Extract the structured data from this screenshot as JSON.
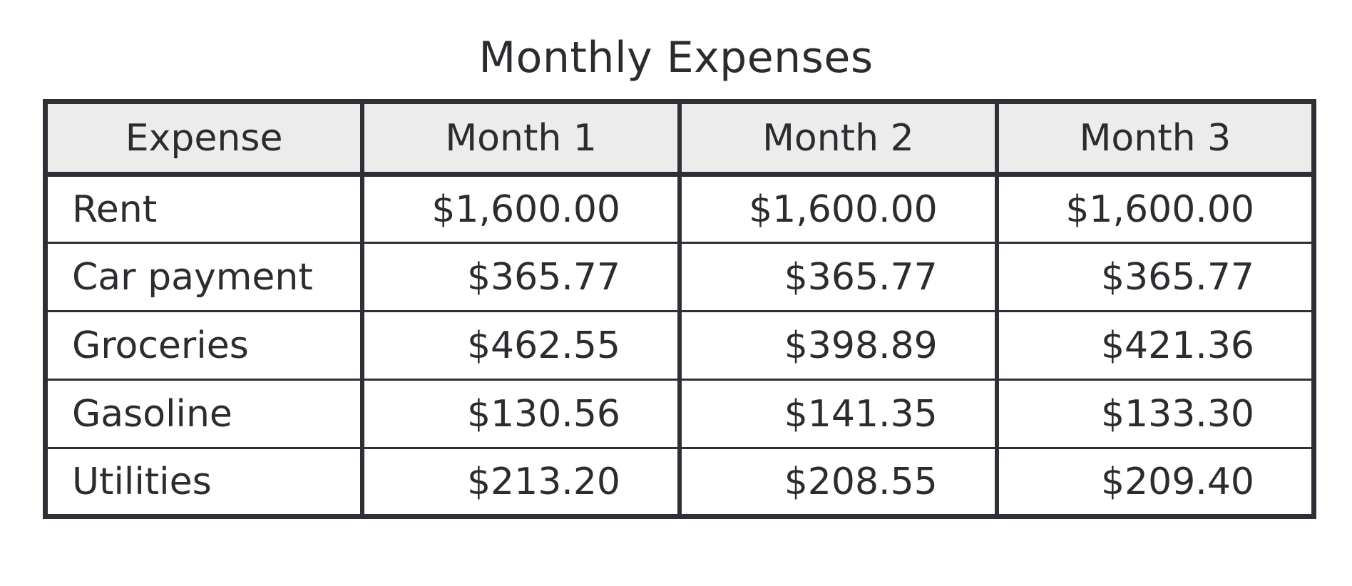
{
  "title": "Monthly Expenses",
  "table": {
    "headers": [
      "Expense",
      "Month 1",
      "Month 2",
      "Month 3"
    ],
    "rows": [
      [
        "Rent",
        "$1,600.00",
        "$1,600.00",
        "$1,600.00"
      ],
      [
        "Car payment",
        "$365.77",
        "$365.77",
        "$365.77"
      ],
      [
        "Groceries",
        "$462.55",
        "$398.89",
        "$421.36"
      ],
      [
        "Gasoline",
        "$130.56",
        "$141.35",
        "$133.30"
      ],
      [
        "Utilities",
        "$213.20",
        "$208.55",
        "$209.40"
      ]
    ]
  },
  "colors": {
    "header_background": "#ececec",
    "border": "#2f3035",
    "text": "#2b2b30"
  }
}
